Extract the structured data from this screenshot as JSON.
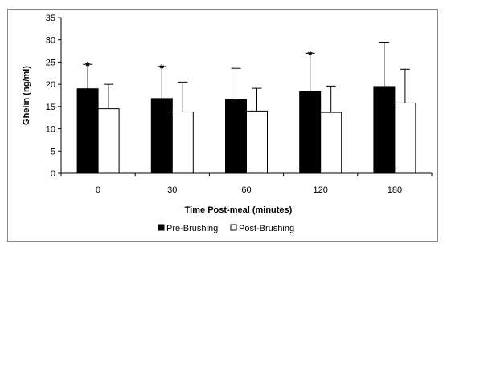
{
  "chart_data": {
    "type": "bar",
    "title": "",
    "xlabel": "Time Post-meal (minutes)",
    "ylabel": "Ghelin (ng/ml)",
    "categories": [
      "0",
      "30",
      "60",
      "120",
      "180"
    ],
    "ylim": [
      0,
      35
    ],
    "yticks": [
      0,
      5,
      10,
      15,
      20,
      25,
      30,
      35
    ],
    "grid": false,
    "legend_position": "bottom",
    "series": [
      {
        "name": "Pre-Brushing",
        "color": "#000000",
        "values": [
          19.0,
          16.8,
          16.5,
          18.4,
          19.5
        ],
        "error_upper": [
          5.5,
          7.2,
          7.1,
          8.6,
          10.0
        ]
      },
      {
        "name": "Post-Brushing",
        "color": "#ffffff",
        "values": [
          14.5,
          13.8,
          14.0,
          13.7,
          15.8
        ],
        "error_upper": [
          5.5,
          6.7,
          5.1,
          5.9,
          7.6
        ]
      }
    ],
    "annotations": [
      {
        "category": "0",
        "series": "Pre-Brushing",
        "text": "*"
      },
      {
        "category": "30",
        "series": "Pre-Brushing",
        "text": "*"
      },
      {
        "category": "120",
        "series": "Pre-Brushing",
        "text": "*"
      }
    ]
  }
}
